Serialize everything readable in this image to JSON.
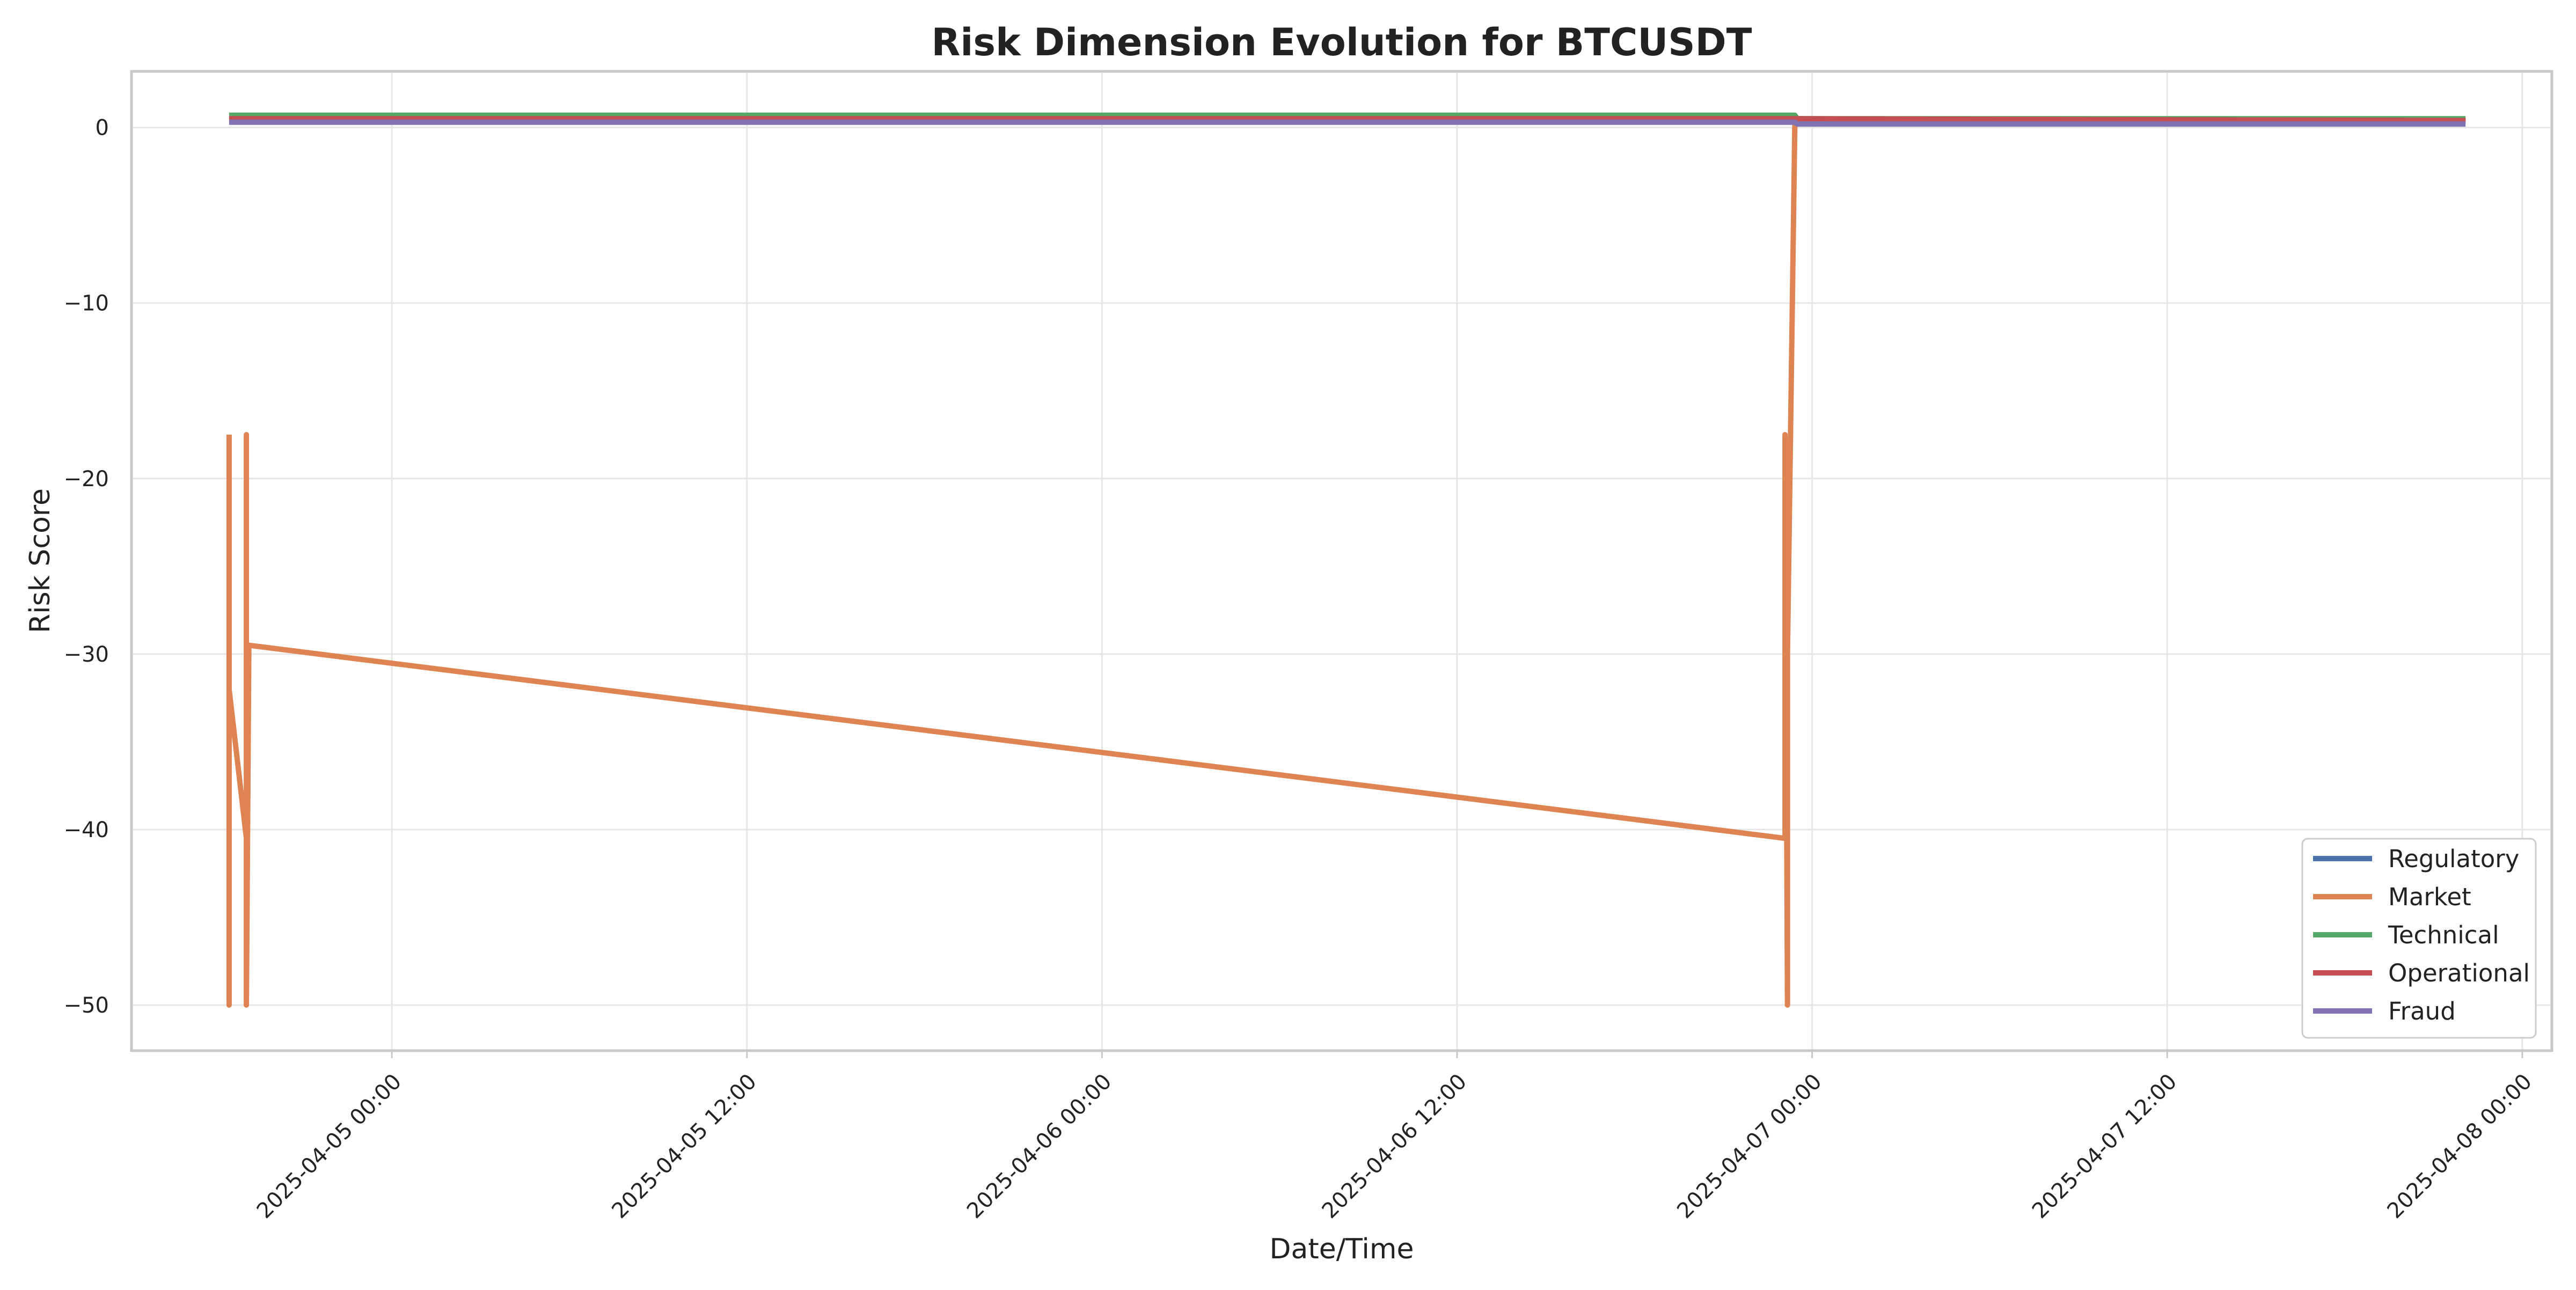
{
  "chart_data": {
    "type": "line",
    "title": "Risk Dimension Evolution for BTCUSDT",
    "xlabel": "Date/Time",
    "ylabel": "Risk Score",
    "x_type": "datetime",
    "xlim": [
      "2025-04-04T15:12",
      "2025-04-08T01:00"
    ],
    "ylim": [
      -52.6,
      3.2
    ],
    "x_ticks": [
      "2025-04-05 00:00",
      "2025-04-05 12:00",
      "2025-04-06 00:00",
      "2025-04-06 12:00",
      "2025-04-07 00:00",
      "2025-04-07 12:00",
      "2025-04-08 00:00"
    ],
    "y_ticks": [
      0,
      -10,
      -20,
      -30,
      -40,
      -50
    ],
    "y_tick_labels": [
      "0",
      "−10",
      "−20",
      "−30",
      "−40",
      "−50"
    ],
    "grid": true,
    "legend_position": "bottom-right",
    "series": [
      {
        "name": "Regulatory",
        "color": "#4c72b0",
        "points": [
          [
            "2025-04-04T18:30",
            0.5
          ],
          [
            "2025-04-06T23:25",
            0.5
          ],
          [
            "2025-04-07T22:05",
            0.4
          ]
        ]
      },
      {
        "name": "Market",
        "color": "#dd8452",
        "points": [
          [
            "2025-04-04T18:30",
            -17.5
          ],
          [
            "2025-04-04T18:30",
            -50.0
          ],
          [
            "2025-04-04T18:30",
            -32.0
          ],
          [
            "2025-04-04T19:05",
            -40.5
          ],
          [
            "2025-04-04T19:05",
            -17.5
          ],
          [
            "2025-04-04T19:05",
            -50.0
          ],
          [
            "2025-04-04T19:10",
            -29.5
          ],
          [
            "2025-04-06T23:05",
            -40.5
          ],
          [
            "2025-04-06T23:05",
            -17.5
          ],
          [
            "2025-04-06T23:10",
            -50.0
          ],
          [
            "2025-04-06T23:10",
            -30.0
          ],
          [
            "2025-04-06T23:25",
            0.4
          ],
          [
            "2025-04-07T22:05",
            0.4
          ]
        ]
      },
      {
        "name": "Technical",
        "color": "#55a868",
        "points": [
          [
            "2025-04-04T18:30",
            0.7
          ],
          [
            "2025-04-06T23:25",
            0.7
          ],
          [
            "2025-04-06T23:30",
            0.5
          ],
          [
            "2025-04-07T22:05",
            0.5
          ]
        ]
      },
      {
        "name": "Operational",
        "color": "#c44e52",
        "points": [
          [
            "2025-04-04T18:30",
            0.5
          ],
          [
            "2025-04-06T23:25",
            0.5
          ],
          [
            "2025-04-07T22:05",
            0.4
          ]
        ]
      },
      {
        "name": "Fraud",
        "color": "#8172b3",
        "points": [
          [
            "2025-04-04T18:30",
            0.3
          ],
          [
            "2025-04-06T23:25",
            0.3
          ],
          [
            "2025-04-06T23:30",
            0.2
          ],
          [
            "2025-04-07T22:05",
            0.2
          ]
        ]
      }
    ]
  }
}
